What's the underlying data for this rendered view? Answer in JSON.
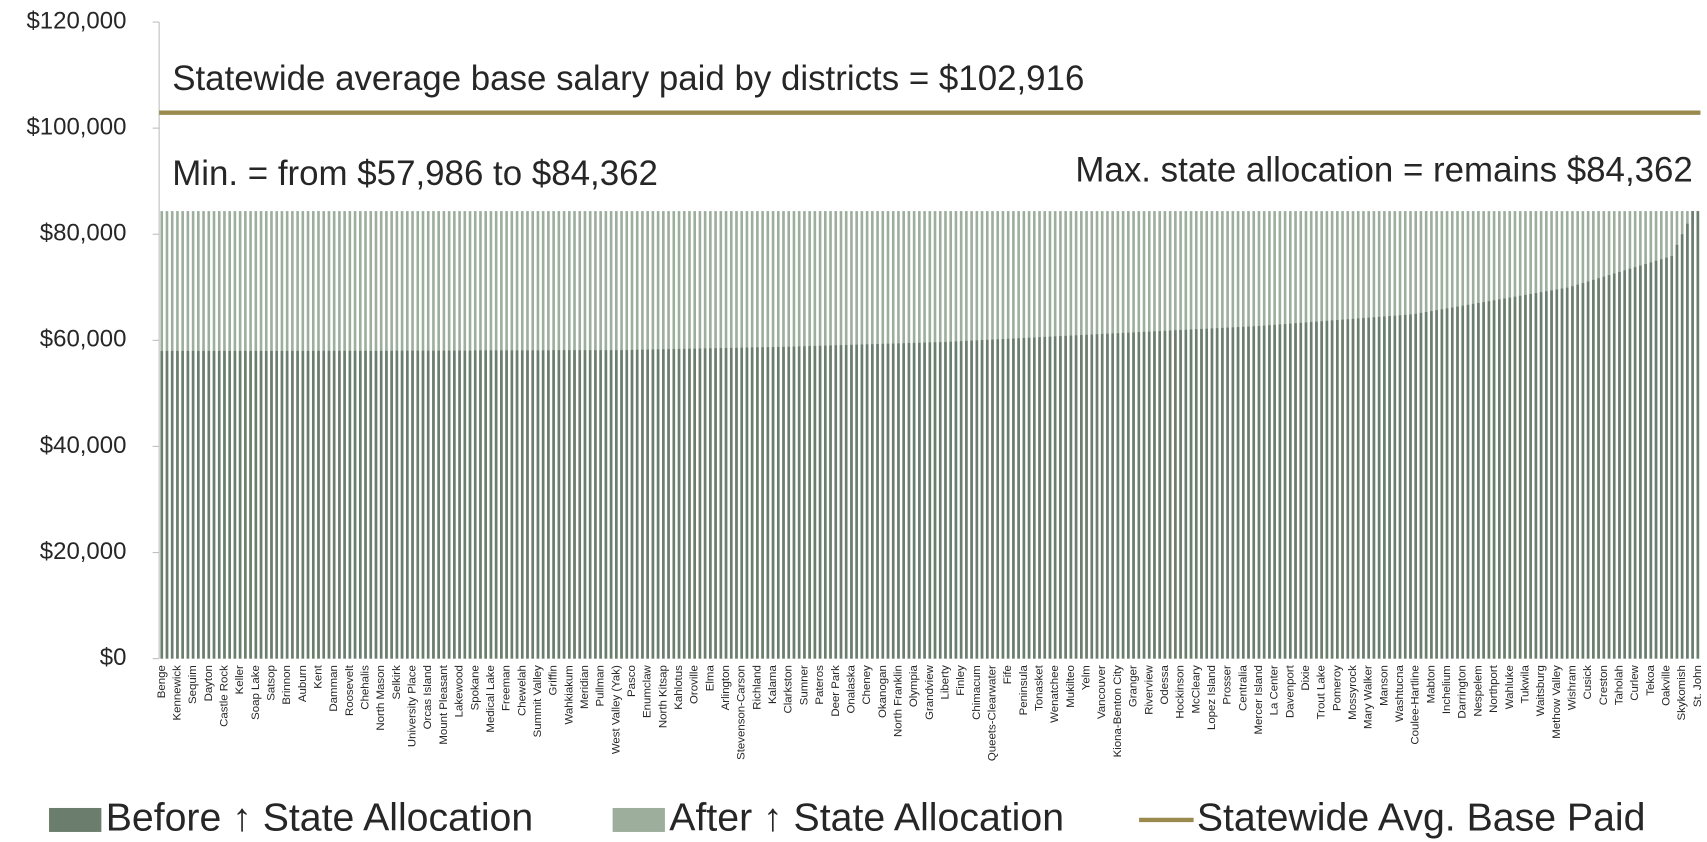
{
  "chart_data": {
    "type": "bar",
    "annotations": [
      "Statewide average base salary paid by districts = $102,916",
      "Min. = from $57,986 to $84,362",
      "Max. state allocation = remains $84,362"
    ],
    "ylim": [
      0,
      120000
    ],
    "yticks": [
      {
        "value": 0,
        "label": "$0"
      },
      {
        "value": 20000,
        "label": "$20,000"
      },
      {
        "value": 40000,
        "label": "$40,000"
      },
      {
        "value": 60000,
        "label": "$60,000"
      },
      {
        "value": 80000,
        "label": "$80,000"
      },
      {
        "value": 100000,
        "label": "$100,000"
      },
      {
        "value": 120000,
        "label": "$120,000"
      }
    ],
    "average_line": {
      "name": "Statewide Avg. Base Paid",
      "value": 102916,
      "color": "#9b8a4e"
    },
    "categories": [
      "Benge",
      null,
      null,
      "Kennewick",
      null,
      null,
      "Sequim",
      null,
      null,
      "Dayton",
      null,
      null,
      "Castle Rock",
      null,
      null,
      "Keller",
      null,
      null,
      "Soap Lake",
      null,
      null,
      "Satsop",
      null,
      null,
      "Brinnon",
      null,
      null,
      "Auburn",
      null,
      null,
      "Kent",
      null,
      null,
      "Damman",
      null,
      null,
      "Roosevelt",
      null,
      null,
      "Chehalis",
      null,
      null,
      "North Mason",
      null,
      null,
      "Selkirk",
      null,
      null,
      "University Place",
      null,
      null,
      "Orcas Island",
      null,
      null,
      "Mount Pleasant",
      null,
      null,
      "Lakewood",
      null,
      null,
      "Spokane",
      null,
      null,
      "Medical Lake",
      null,
      null,
      "Freeman",
      null,
      null,
      "Chewelah",
      null,
      null,
      "Summit Valley",
      null,
      null,
      "Griffin",
      null,
      null,
      "Wahkiakum",
      null,
      null,
      "Meridian",
      null,
      null,
      "Pullman",
      null,
      null,
      "West Valley (Yak)",
      null,
      null,
      "Pasco",
      null,
      null,
      "Enumclaw",
      null,
      null,
      "North Kitsap",
      null,
      null,
      "Kahlotus",
      null,
      null,
      "Oroville",
      null,
      null,
      "Elma",
      null,
      null,
      "Arlington",
      null,
      null,
      "Stevenson-Carson",
      null,
      null,
      "Richland",
      null,
      null,
      "Kalama",
      null,
      null,
      "Clarkston",
      null,
      null,
      "Sumner",
      null,
      null,
      "Pateros",
      null,
      null,
      "Deer Park",
      null,
      null,
      "Onalaska",
      null,
      null,
      "Cheney",
      null,
      null,
      "Okanogan",
      null,
      null,
      "North Franklin",
      null,
      null,
      "Olympia",
      null,
      null,
      "Grandview",
      null,
      null,
      "Liberty",
      null,
      null,
      "Finley",
      null,
      null,
      "Chimacum",
      null,
      null,
      "Queets-Clearwater",
      null,
      null,
      "Fife",
      null,
      null,
      "Peninsula",
      null,
      null,
      "Tonasket",
      null,
      null,
      "Wenatchee",
      null,
      null,
      "Mukilteo",
      null,
      null,
      "Yelm",
      null,
      null,
      "Vancouver",
      null,
      null,
      "Kiona-Benton City",
      null,
      null,
      "Granger",
      null,
      null,
      "Riverview",
      null,
      null,
      "Odessa",
      null,
      null,
      "Hockinson",
      null,
      null,
      "McCleary",
      null,
      null,
      "Lopez Island",
      null,
      null,
      "Prosser",
      null,
      null,
      "Centralia",
      null,
      null,
      "Mercer Island",
      null,
      null,
      "La Center",
      null,
      null,
      "Davenport",
      null,
      null,
      "Dixie",
      null,
      null,
      "Trout Lake",
      null,
      null,
      "Pomeroy",
      null,
      null,
      "Mossyrock",
      null,
      null,
      "Mary Walker",
      null,
      null,
      "Manson",
      null,
      null,
      "Washtucna",
      null,
      null,
      "Coulee-Hartline",
      null,
      null,
      "Mabton",
      null,
      null,
      "Inchelium",
      null,
      null,
      "Darrington",
      null,
      null,
      "Nespelem",
      null,
      null,
      "Northport",
      null,
      null,
      "Wahluke",
      null,
      null,
      "Tukwila",
      null,
      null,
      "Waitsburg",
      null,
      null,
      "Methow Valley",
      null,
      null,
      "Wishram",
      null,
      null,
      "Cusick",
      null,
      null,
      "Creston",
      null,
      null,
      "Taholah",
      null,
      null,
      "Curlew",
      null,
      null,
      "Tekoa",
      null,
      null,
      "Oakville",
      null,
      null,
      "Skykomish",
      null,
      null,
      "St. John"
    ],
    "series": [
      {
        "name": "Before ↑ State Allocation",
        "color": "#6b7d6c",
        "values": [
          57986,
          58000,
          58000,
          58000,
          58000,
          58000,
          58000,
          58000,
          58000,
          58000,
          58000,
          58000,
          58000,
          58000,
          58000,
          58000,
          58000,
          58000,
          58000,
          58000,
          58000,
          58000,
          58000,
          58000,
          58000,
          58000,
          58000,
          58000,
          58000,
          58000,
          58020,
          58020,
          58020,
          58020,
          58020,
          58020,
          58020,
          58020,
          58020,
          58020,
          58020,
          58020,
          58020,
          58020,
          58020,
          58050,
          58050,
          58050,
          58050,
          58050,
          58050,
          58050,
          58050,
          58050,
          58050,
          58050,
          58050,
          58050,
          58050,
          58050,
          58100,
          58100,
          58100,
          58100,
          58100,
          58100,
          58100,
          58100,
          58100,
          58100,
          58100,
          58100,
          58100,
          58100,
          58100,
          58150,
          58150,
          58150,
          58150,
          58150,
          58150,
          58150,
          58150,
          58150,
          58150,
          58150,
          58150,
          58150,
          58150,
          58150,
          58200,
          58220,
          58240,
          58260,
          58280,
          58300,
          58320,
          58340,
          58360,
          58380,
          58400,
          58420,
          58440,
          58460,
          58480,
          58500,
          58520,
          58540,
          58560,
          58580,
          58600,
          58620,
          58640,
          58660,
          58680,
          58700,
          58720,
          58740,
          58760,
          58780,
          58800,
          58830,
          58860,
          58890,
          58920,
          58950,
          58980,
          59010,
          59040,
          59070,
          59100,
          59130,
          59160,
          59190,
          59220,
          59250,
          59280,
          59310,
          59340,
          59370,
          59400,
          59430,
          59460,
          59490,
          59520,
          59550,
          59580,
          59610,
          59640,
          59670,
          59700,
          59750,
          59800,
          59850,
          59900,
          59950,
          60000,
          60050,
          60100,
          60150,
          60200,
          60250,
          60300,
          60350,
          60400,
          60450,
          60500,
          60550,
          60600,
          60650,
          60700,
          60750,
          60800,
          60850,
          60900,
          60950,
          61000,
          61050,
          61100,
          61150,
          61200,
          61250,
          61300,
          61350,
          61400,
          61450,
          61500,
          61550,
          61600,
          61650,
          61700,
          61750,
          61800,
          61850,
          61900,
          61950,
          62000,
          62050,
          62100,
          62150,
          62200,
          62250,
          62300,
          62350,
          62400,
          62450,
          62500,
          62550,
          62600,
          62650,
          62700,
          62775,
          62850,
          62925,
          63000,
          63075,
          63150,
          63225,
          63300,
          63375,
          63450,
          63525,
          63600,
          63675,
          63750,
          63825,
          63900,
          63975,
          64050,
          64125,
          64200,
          64275,
          64350,
          64425,
          64500,
          64575,
          64650,
          64725,
          64800,
          64875,
          65000,
          65170,
          65340,
          65510,
          65680,
          65850,
          66020,
          66190,
          66360,
          66530,
          66700,
          66870,
          67040,
          67210,
          67380,
          67550,
          67720,
          67890,
          68060,
          68230,
          68400,
          68570,
          68740,
          68910,
          69080,
          69250,
          69420,
          69590,
          69760,
          69930,
          70200,
          70500,
          70800,
          71100,
          71400,
          71700,
          72000,
          72300,
          72600,
          72900,
          73200,
          73500,
          73800,
          74100,
          74400,
          74700,
          75000,
          75300,
          75600,
          75900,
          78000,
          80000,
          82000,
          84362,
          84362
        ]
      },
      {
        "name": "After ↑ State Allocation",
        "color": "#9dae9d",
        "values": [
          84362,
          84362,
          84362,
          84362,
          84362,
          84362,
          84362,
          84362,
          84362,
          84362,
          84362,
          84362,
          84362,
          84362,
          84362,
          84362,
          84362,
          84362,
          84362,
          84362,
          84362,
          84362,
          84362,
          84362,
          84362,
          84362,
          84362,
          84362,
          84362,
          84362,
          84362,
          84362,
          84362,
          84362,
          84362,
          84362,
          84362,
          84362,
          84362,
          84362,
          84362,
          84362,
          84362,
          84362,
          84362,
          84362,
          84362,
          84362,
          84362,
          84362,
          84362,
          84362,
          84362,
          84362,
          84362,
          84362,
          84362,
          84362,
          84362,
          84362,
          84362,
          84362,
          84362,
          84362,
          84362,
          84362,
          84362,
          84362,
          84362,
          84362,
          84362,
          84362,
          84362,
          84362,
          84362,
          84362,
          84362,
          84362,
          84362,
          84362,
          84362,
          84362,
          84362,
          84362,
          84362,
          84362,
          84362,
          84362,
          84362,
          84362,
          84362,
          84362,
          84362,
          84362,
          84362,
          84362,
          84362,
          84362,
          84362,
          84362,
          84362,
          84362,
          84362,
          84362,
          84362,
          84362,
          84362,
          84362,
          84362,
          84362,
          84362,
          84362,
          84362,
          84362,
          84362,
          84362,
          84362,
          84362,
          84362,
          84362,
          84362,
          84362,
          84362,
          84362,
          84362,
          84362,
          84362,
          84362,
          84362,
          84362,
          84362,
          84362,
          84362,
          84362,
          84362,
          84362,
          84362,
          84362,
          84362,
          84362,
          84362,
          84362,
          84362,
          84362,
          84362,
          84362,
          84362,
          84362,
          84362,
          84362,
          84362,
          84362,
          84362,
          84362,
          84362,
          84362,
          84362,
          84362,
          84362,
          84362,
          84362,
          84362,
          84362,
          84362,
          84362,
          84362,
          84362,
          84362,
          84362,
          84362,
          84362,
          84362,
          84362,
          84362,
          84362,
          84362,
          84362,
          84362,
          84362,
          84362,
          84362,
          84362,
          84362,
          84362,
          84362,
          84362,
          84362,
          84362,
          84362,
          84362,
          84362,
          84362,
          84362,
          84362,
          84362,
          84362,
          84362,
          84362,
          84362,
          84362,
          84362,
          84362,
          84362,
          84362,
          84362,
          84362,
          84362,
          84362,
          84362,
          84362,
          84362,
          84362,
          84362,
          84362,
          84362,
          84362,
          84362,
          84362,
          84362,
          84362,
          84362,
          84362,
          84362,
          84362,
          84362,
          84362,
          84362,
          84362,
          84362,
          84362,
          84362,
          84362,
          84362,
          84362,
          84362,
          84362,
          84362,
          84362,
          84362,
          84362,
          84362,
          84362,
          84362,
          84362,
          84362,
          84362,
          84362,
          84362,
          84362,
          84362,
          84362,
          84362,
          84362,
          84362,
          84362,
          84362,
          84362,
          84362,
          84362,
          84362,
          84362,
          84362,
          84362,
          84362,
          84362,
          84362,
          84362,
          84362,
          84362,
          84362,
          84362,
          84362,
          84362,
          84362,
          84362,
          84362,
          84362,
          84362,
          84362,
          84362,
          84362,
          84362,
          84362,
          84362,
          84362,
          84362,
          84362,
          84362,
          84362,
          84362,
          84362,
          84362,
          84362,
          84362,
          84362
        ]
      }
    ]
  }
}
